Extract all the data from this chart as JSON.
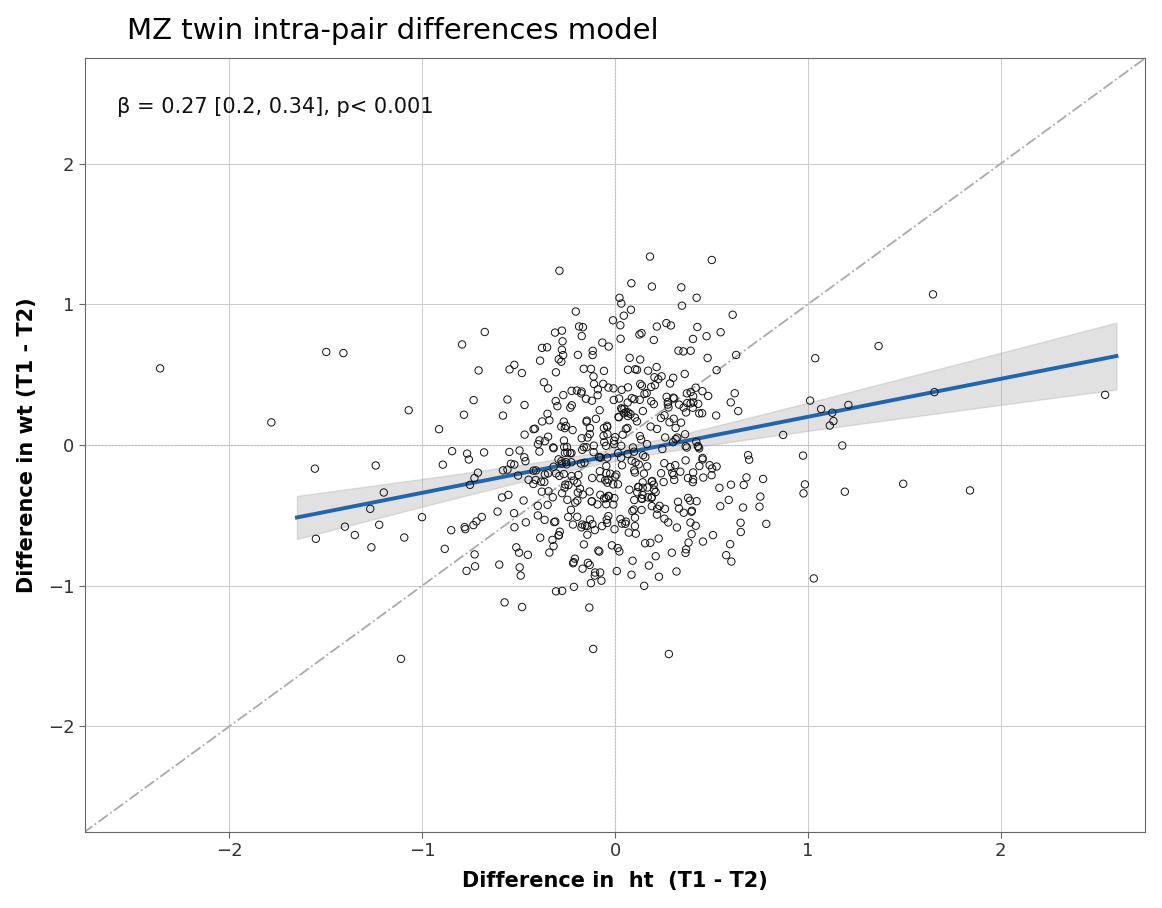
{
  "title": "MZ twin intra-pair differences model",
  "xlabel": "Difference in  ht  (T1 - T2)",
  "ylabel": "Difference in wt (T1 - T2)",
  "annotation": "β = 0.27 [0.2, 0.34], p< 0.001",
  "xlim": [
    -2.75,
    2.75
  ],
  "ylim": [
    -2.75,
    2.75
  ],
  "xticks": [
    -2,
    -1,
    0,
    1,
    2
  ],
  "yticks": [
    -2,
    -1,
    0,
    1,
    2
  ],
  "background_color": "#ffffff",
  "grid_color": "#cccccc",
  "grid_zero_color": "#bbbbbb",
  "regression_slope": 0.27,
  "regression_intercept": -0.07,
  "regression_color": "#2166ac",
  "regression_linewidth": 2.8,
  "ci_color": "#aaaaaa",
  "ci_alpha": 0.35,
  "scatter_color": "none",
  "scatter_edge_color": "#111111",
  "scatter_size": 28,
  "scatter_linewidth": 0.7,
  "diagonal_color": "#aaaaaa",
  "diagonal_linestyle": "-.",
  "diagonal_linewidth": 1.3,
  "title_fontsize": 21,
  "label_fontsize": 15,
  "tick_fontsize": 13,
  "annotation_fontsize": 15,
  "seed": 12345,
  "n_points": 550,
  "x_std": 0.38,
  "noise_std": 0.52
}
